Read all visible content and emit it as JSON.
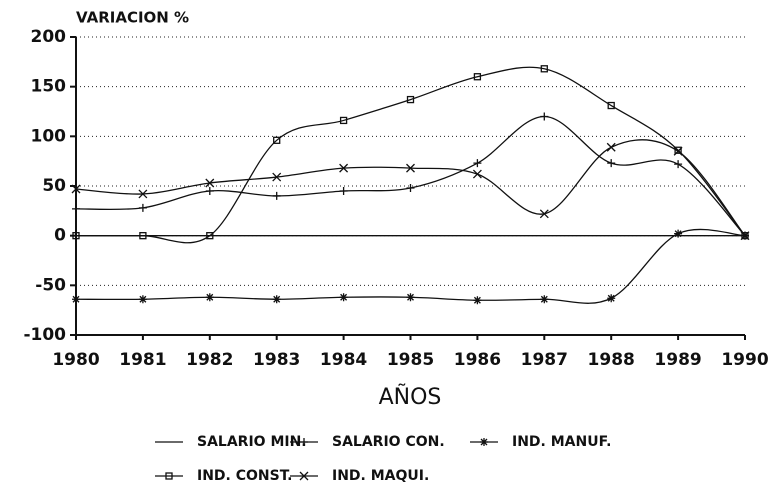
{
  "chart_data": {
    "type": "line",
    "title": "VARIACION %",
    "x_label": "AÑOS",
    "categories": [
      "1980",
      "1981",
      "1982",
      "1983",
      "1984",
      "1985",
      "1986",
      "1987",
      "1988",
      "1989",
      "1990"
    ],
    "ylim": [
      -100,
      200
    ],
    "yticks": [
      -100,
      -50,
      0,
      50,
      100,
      150,
      200
    ],
    "grid": true,
    "legend": "bottom",
    "series": [
      {
        "name": "SALARIO MIN.",
        "color": "#111111",
        "marker": "none",
        "values": [
          0,
          0,
          0,
          0,
          0,
          0,
          0,
          0,
          0,
          0,
          0
        ]
      },
      {
        "name": "SALARIO CON.",
        "color": "#111111",
        "marker": "plus",
        "values": [
          27,
          28,
          45,
          40,
          45,
          48,
          73,
          120,
          73,
          72,
          0
        ]
      },
      {
        "name": "IND. MANUF.",
        "color": "#111111",
        "marker": "star",
        "values": [
          -64,
          -64,
          -62,
          -64,
          -62,
          -62,
          -65,
          -64,
          -63,
          2,
          0
        ]
      },
      {
        "name": "IND. CONST.",
        "color": "#111111",
        "marker": "square",
        "values": [
          0,
          0,
          0,
          96,
          116,
          137,
          160,
          168,
          131,
          86,
          0
        ]
      },
      {
        "name": "IND. MAQUI.",
        "color": "#111111",
        "marker": "cross",
        "values": [
          47,
          42,
          53,
          59,
          68,
          68,
          62,
          22,
          89,
          85,
          0
        ]
      }
    ]
  }
}
